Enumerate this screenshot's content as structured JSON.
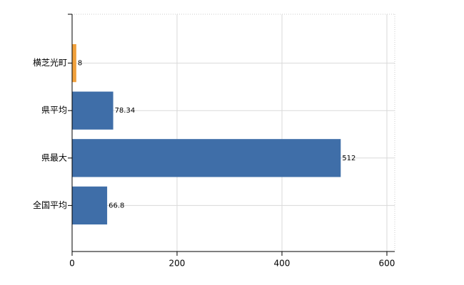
{
  "chart_data": {
    "type": "hbar",
    "categories": [
      "横芝光町",
      "県平均",
      "県最大",
      "全国平均"
    ],
    "values": [
      8,
      78.34,
      512,
      66.8
    ],
    "colors": [
      "#f0a03c",
      "#3f6ea8",
      "#3f6ea8",
      "#3f6ea8"
    ],
    "xlim": [
      0,
      615
    ],
    "xticks": [
      0,
      200,
      400,
      600
    ],
    "grid": true
  }
}
